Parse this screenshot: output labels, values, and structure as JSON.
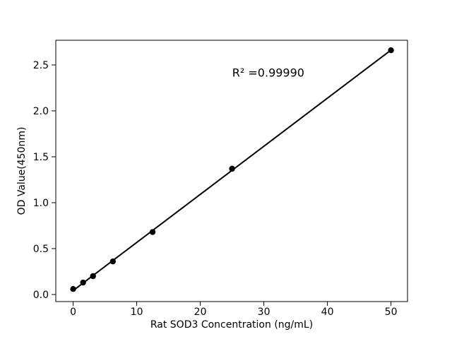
{
  "figure": {
    "background": "#ffffff"
  },
  "chart_data": {
    "type": "scatter",
    "title": "",
    "xlabel": "Rat SOD3 Concentration (ng/mL)",
    "ylabel": "OD Value(450nm)",
    "legend": "none",
    "grid": false,
    "xlim": [
      -2.73,
      52.6
    ],
    "ylim": [
      -0.077,
      2.769
    ],
    "x_ticks": {
      "values": [
        0,
        10,
        20,
        30,
        40,
        50
      ],
      "labels": [
        "0",
        "10",
        "20",
        "30",
        "40",
        "50"
      ]
    },
    "y_ticks": {
      "values": [
        0.0,
        0.5,
        1.0,
        1.5,
        2.0,
        2.5
      ],
      "labels": [
        "0.0",
        "0.5",
        "1.0",
        "1.5",
        "2.0",
        "2.5"
      ]
    },
    "points": [
      {
        "x": 0,
        "y": 0.06
      },
      {
        "x": 1.5625,
        "y": 0.13
      },
      {
        "x": 3.125,
        "y": 0.2
      },
      {
        "x": 6.25,
        "y": 0.36
      },
      {
        "x": 12.5,
        "y": 0.68
      },
      {
        "x": 25,
        "y": 1.37
      },
      {
        "x": 50,
        "y": 2.66
      }
    ],
    "trendline": {
      "x1": 0,
      "y1": 0.043,
      "x2": 50,
      "y2": 2.662
    },
    "annotation": {
      "text": "R² =0.99990",
      "x": 30.7,
      "y": 2.42
    },
    "r_squared": 0.9999,
    "colors": {
      "marker": "#000000",
      "line": "#000000",
      "axis": "#000000",
      "text": "#000000",
      "background": "#ffffff"
    }
  }
}
